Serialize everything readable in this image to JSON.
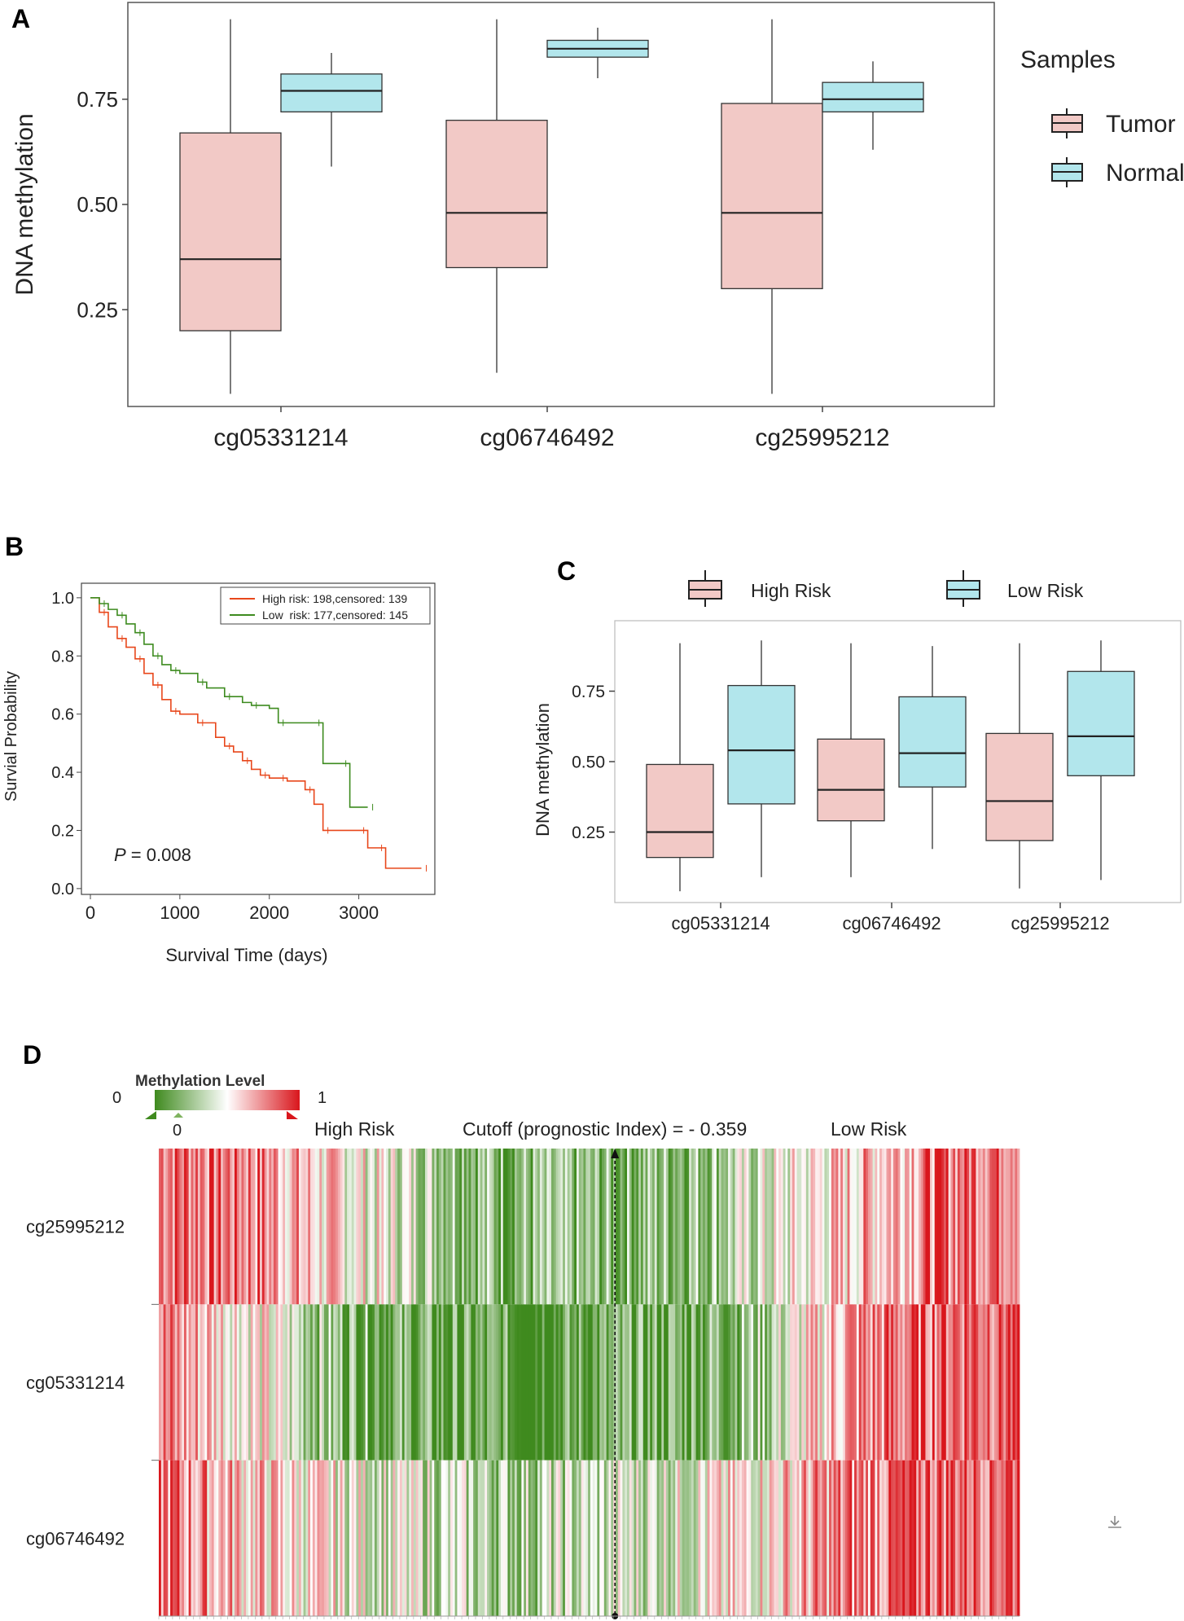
{
  "colors": {
    "tumor": "#f2c9c6",
    "normal": "#b2e6ec",
    "high_risk_line": "#e8471b",
    "low_risk_line": "#3d8b1f",
    "heat_low": "#3f8a1e",
    "heat_mid": "#ffffff",
    "heat_high": "#d9161c"
  },
  "chart_data": [
    {
      "panel": "A",
      "type": "box",
      "ylabel": "DNA methylation",
      "yticks": [
        "0.25",
        "0.50",
        "0.75"
      ],
      "ylim": [
        0.02,
        0.98
      ],
      "categories": [
        "cg05331214",
        "cg06746492",
        "cg25995212"
      ],
      "legend_title": "Samples",
      "series": [
        {
          "name": "Tumor",
          "boxes": [
            {
              "min": 0.05,
              "q1": 0.2,
              "median": 0.37,
              "q3": 0.67,
              "max": 0.94
            },
            {
              "min": 0.1,
              "q1": 0.35,
              "median": 0.48,
              "q3": 0.7,
              "max": 0.94
            },
            {
              "min": 0.05,
              "q1": 0.3,
              "median": 0.48,
              "q3": 0.74,
              "max": 0.94
            }
          ]
        },
        {
          "name": "Normal",
          "boxes": [
            {
              "min": 0.59,
              "q1": 0.72,
              "median": 0.77,
              "q3": 0.81,
              "max": 0.86
            },
            {
              "min": 0.8,
              "q1": 0.85,
              "median": 0.87,
              "q3": 0.89,
              "max": 0.92
            },
            {
              "min": 0.63,
              "q1": 0.72,
              "median": 0.75,
              "q3": 0.79,
              "max": 0.84
            }
          ]
        }
      ]
    },
    {
      "panel": "B",
      "type": "line",
      "xlabel": "Survival Time (days)",
      "ylabel": "Survial Probability",
      "xticks": [
        "0",
        "1000",
        "2000",
        "3000"
      ],
      "yticks": [
        "0.0",
        "0.2",
        "0.4",
        "0.6",
        "0.8",
        "1.0"
      ],
      "xlim": [
        -100,
        3850
      ],
      "ylim": [
        -0.02,
        1.05
      ],
      "p_value_label": "P",
      "p_value_text": " = 0.008",
      "series": [
        {
          "name": "High risk: 198,censored: 139",
          "x": [
            0,
            100,
            200,
            300,
            400,
            500,
            600,
            700,
            800,
            900,
            1000,
            1200,
            1400,
            1500,
            1600,
            1700,
            1800,
            1900,
            2000,
            2100,
            2200,
            2400,
            2500,
            2600,
            2800,
            3000,
            3100,
            3200,
            3300,
            3700
          ],
          "y": [
            1.0,
            0.95,
            0.9,
            0.86,
            0.83,
            0.79,
            0.74,
            0.7,
            0.65,
            0.61,
            0.6,
            0.57,
            0.52,
            0.49,
            0.47,
            0.44,
            0.41,
            0.39,
            0.38,
            0.38,
            0.37,
            0.34,
            0.29,
            0.2,
            0.2,
            0.2,
            0.14,
            0.14,
            0.07,
            0.07
          ]
        },
        {
          "name": "Low  risk: 177,censored: 145",
          "x": [
            0,
            100,
            200,
            300,
            400,
            500,
            600,
            700,
            800,
            900,
            1000,
            1200,
            1300,
            1500,
            1700,
            1800,
            2000,
            2100,
            2300,
            2500,
            2600,
            2800,
            2900,
            3100
          ],
          "y": [
            1.0,
            0.98,
            0.96,
            0.94,
            0.91,
            0.88,
            0.84,
            0.8,
            0.77,
            0.75,
            0.74,
            0.71,
            0.69,
            0.66,
            0.64,
            0.63,
            0.62,
            0.57,
            0.57,
            0.57,
            0.43,
            0.43,
            0.28,
            0.28
          ]
        }
      ]
    },
    {
      "panel": "C",
      "type": "box",
      "ylabel": "DNA methylation",
      "yticks": [
        "0.25",
        "0.50",
        "0.75"
      ],
      "ylim": [
        0.0,
        1.0
      ],
      "categories": [
        "cg05331214",
        "cg06746492",
        "cg25995212"
      ],
      "series": [
        {
          "name": "High Risk",
          "boxes": [
            {
              "min": 0.04,
              "q1": 0.16,
              "median": 0.25,
              "q3": 0.49,
              "max": 0.92
            },
            {
              "min": 0.09,
              "q1": 0.29,
              "median": 0.4,
              "q3": 0.58,
              "max": 0.92
            },
            {
              "min": 0.05,
              "q1": 0.22,
              "median": 0.36,
              "q3": 0.6,
              "max": 0.92
            }
          ]
        },
        {
          "name": "Low Risk",
          "boxes": [
            {
              "min": 0.09,
              "q1": 0.35,
              "median": 0.54,
              "q3": 0.77,
              "max": 0.93
            },
            {
              "min": 0.19,
              "q1": 0.41,
              "median": 0.53,
              "q3": 0.73,
              "max": 0.91
            },
            {
              "min": 0.08,
              "q1": 0.45,
              "median": 0.59,
              "q3": 0.82,
              "max": 0.93
            }
          ]
        }
      ]
    },
    {
      "panel": "D",
      "type": "heatmap",
      "title": "Methylation Level",
      "scale_min": "0",
      "scale_max": "1",
      "scale_marker": "0",
      "left_group": "High Risk",
      "right_group": "Low Risk",
      "cutoff_label": "Cutoff (prognostic Index) = - 0.359",
      "cutoff_position": 0.53,
      "rows": [
        "cg25995212",
        "cg05331214",
        "cg06746492"
      ],
      "row_profiles": [
        [
          0.85,
          0.8,
          0.55,
          0.38,
          0.22,
          0.18,
          0.25,
          0.38,
          0.6,
          0.8,
          0.9
        ],
        [
          0.75,
          0.55,
          0.25,
          0.12,
          0.08,
          0.1,
          0.15,
          0.28,
          0.7,
          0.85,
          0.9
        ],
        [
          0.8,
          0.62,
          0.48,
          0.38,
          0.3,
          0.35,
          0.42,
          0.55,
          0.75,
          0.85,
          0.9
        ]
      ]
    }
  ]
}
